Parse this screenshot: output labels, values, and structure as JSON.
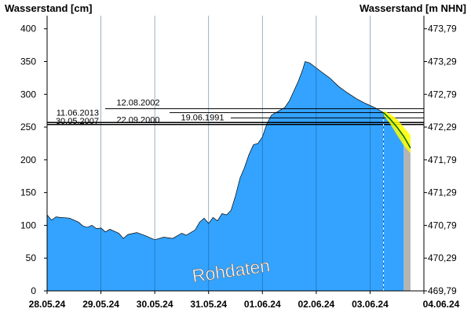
{
  "chart_data": {
    "type": "area",
    "ylabel_left": "Wasserstand [cm]",
    "ylabel_right": "Wasserstand [m NHN]",
    "watermark": "Rohdaten",
    "ylim": [
      0,
      420
    ],
    "xlim": [
      "28.05.24 00:00",
      "04.06.24 00:00"
    ],
    "x_ticks": [
      "28.05.24",
      "29.05.24",
      "30.05.24",
      "31.05.24",
      "01.06.24",
      "02.06.24",
      "03.06.24",
      "04.06.24"
    ],
    "y_ticks_left": [
      0,
      50,
      100,
      150,
      200,
      250,
      300,
      350,
      400
    ],
    "y_ticks_right": [
      "469,79",
      "470,29",
      "470,79",
      "471,29",
      "471,79",
      "472,29",
      "472,79",
      "473,29",
      "473,79"
    ],
    "grid": false,
    "colors": {
      "measured_fill": "#33a3ff",
      "forecast_fill": "#33a3ff",
      "forecast_tail": "#b4b4b4",
      "forecast_band": "#ffff00",
      "forecast_line": "#006400",
      "reference_line": "#000000"
    },
    "reference_levels": [
      {
        "label": "12.08.2002",
        "value": 278
      },
      {
        "label": "11.06.2013",
        "value": 272
      },
      {
        "label": "19.06.1991",
        "value": 264
      },
      {
        "label": "30.05.2007",
        "value": 257
      },
      {
        "label": "22.09.2000",
        "value": 254
      }
    ],
    "series": [
      {
        "name": "measured",
        "points": [
          [
            "28.05.24 00:00",
            116
          ],
          [
            "28.05.24 02:00",
            108
          ],
          [
            "28.05.24 04:00",
            113
          ],
          [
            "28.05.24 06:00",
            112
          ],
          [
            "28.05.24 10:00",
            111
          ],
          [
            "28.05.24 14:00",
            105
          ],
          [
            "28.05.24 16:00",
            99
          ],
          [
            "28.05.24 18:00",
            97
          ],
          [
            "28.05.24 20:00",
            100
          ],
          [
            "28.05.24 22:00",
            95
          ],
          [
            "29.05.24 00:00",
            96
          ],
          [
            "29.05.24 02:00",
            90
          ],
          [
            "29.05.24 04:00",
            94
          ],
          [
            "29.05.24 08:00",
            88
          ],
          [
            "29.05.24 10:00",
            80
          ],
          [
            "29.05.24 12:00",
            86
          ],
          [
            "29.05.24 16:00",
            89
          ],
          [
            "29.05.24 20:00",
            84
          ],
          [
            "30.05.24 00:00",
            78
          ],
          [
            "30.05.24 04:00",
            82
          ],
          [
            "30.05.24 08:00",
            80
          ],
          [
            "30.05.24 12:00",
            88
          ],
          [
            "30.05.24 14:00",
            85
          ],
          [
            "30.05.24 18:00",
            93
          ],
          [
            "30.05.24 20:00",
            105
          ],
          [
            "30.05.24 22:00",
            111
          ],
          [
            "31.05.24 00:00",
            103
          ],
          [
            "31.05.24 02:00",
            112
          ],
          [
            "31.05.24 04:00",
            107
          ],
          [
            "31.05.24 06:00",
            118
          ],
          [
            "31.05.24 08:00",
            116
          ],
          [
            "31.05.24 10:00",
            123
          ],
          [
            "31.05.24 12:00",
            145
          ],
          [
            "31.05.24 14:00",
            172
          ],
          [
            "31.05.24 16:00",
            188
          ],
          [
            "31.05.24 18:00",
            208
          ],
          [
            "31.05.24 20:00",
            223
          ],
          [
            "31.05.24 22:00",
            225
          ],
          [
            "01.06.24 00:00",
            235
          ],
          [
            "01.06.24 02:00",
            255
          ],
          [
            "01.06.24 04:00",
            268
          ],
          [
            "01.06.24 06:00",
            272
          ],
          [
            "01.06.24 08:00",
            276
          ],
          [
            "01.06.24 10:00",
            280
          ],
          [
            "01.06.24 12:00",
            290
          ],
          [
            "01.06.24 14:00",
            305
          ],
          [
            "01.06.24 16:00",
            320
          ],
          [
            "01.06.24 18:00",
            338
          ],
          [
            "01.06.24 19:00",
            350
          ],
          [
            "01.06.24 21:00",
            348
          ],
          [
            "01.06.24 23:00",
            343
          ],
          [
            "02.06.24 02:00",
            335
          ],
          [
            "02.06.24 06:00",
            325
          ],
          [
            "02.06.24 10:00",
            312
          ],
          [
            "02.06.24 14:00",
            302
          ],
          [
            "02.06.24 18:00",
            293
          ],
          [
            "02.06.24 22:00",
            286
          ],
          [
            "03.06.24 02:00",
            280
          ],
          [
            "03.06.24 06:00",
            272
          ]
        ]
      },
      {
        "name": "forecast",
        "points": [
          [
            "03.06.24 06:00",
            272
          ],
          [
            "03.06.24 09:00",
            262
          ],
          [
            "03.06.24 12:00",
            250
          ],
          [
            "03.06.24 15:00",
            236
          ],
          [
            "03.06.24 18:00",
            218
          ]
        ],
        "upper": [
          [
            "03.06.24 06:00",
            275
          ],
          [
            "03.06.24 09:00",
            270
          ],
          [
            "03.06.24 12:00",
            262
          ],
          [
            "03.06.24 15:00",
            250
          ],
          [
            "03.06.24 18:00",
            238
          ]
        ],
        "lower": [
          [
            "03.06.24 06:00",
            268
          ],
          [
            "03.06.24 09:00",
            255
          ],
          [
            "03.06.24 12:00",
            238
          ],
          [
            "03.06.24 15:00",
            222
          ],
          [
            "03.06.24 18:00",
            210
          ]
        ]
      }
    ]
  }
}
